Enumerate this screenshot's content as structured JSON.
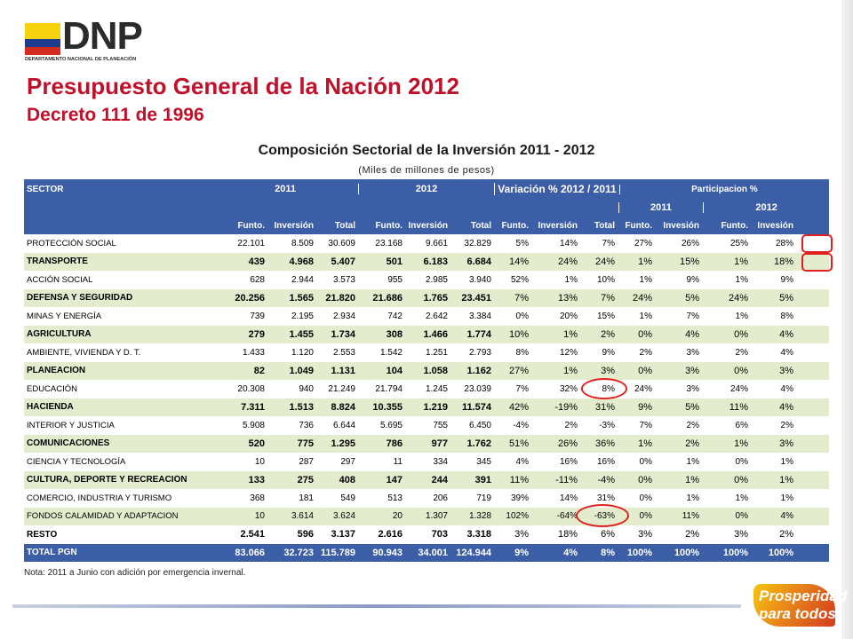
{
  "header": {
    "logo_text": "DNP",
    "logo_subtext": "DEPARTAMENTO NACIONAL DE PLANEACIÓN",
    "title": "Presupuesto General de la Nación 2012",
    "subtitle": "Decreto 111 de 1996"
  },
  "table": {
    "title": "Composición Sectorial de la Inversión 2011 - 2012",
    "subtitle": "(Miles de millones de pesos)",
    "headers": {
      "sector": "SECTOR",
      "y2011": "2011",
      "y2012": "2012",
      "variacion": "Variación % 2012 / 2011",
      "participacion": "Participacion %",
      "p2011": "2011",
      "p2012": "2012",
      "funto": "Funto.",
      "inversion": "Inversión",
      "total": "Total",
      "invesion": "Invesión"
    },
    "rows": [
      {
        "sector": "PROTECCIÓN SOCIAL",
        "bold": false,
        "v": [
          "22.101",
          "8.509",
          "30.609",
          "23.168",
          "9.661",
          "32.829",
          "5%",
          "14%",
          "7%",
          "27%",
          "26%",
          "25%",
          "28%"
        ]
      },
      {
        "sector": "TRANSPORTE",
        "bold": true,
        "v": [
          "439",
          "4.968",
          "5.407",
          "501",
          "6.183",
          "6.684",
          "14%",
          "24%",
          "24%",
          "1%",
          "15%",
          "1%",
          "18%"
        ]
      },
      {
        "sector": "ACCIÓN SOCIAL",
        "bold": false,
        "v": [
          "628",
          "2.944",
          "3.573",
          "955",
          "2.985",
          "3.940",
          "52%",
          "1%",
          "10%",
          "1%",
          "9%",
          "1%",
          "9%"
        ]
      },
      {
        "sector": "DEFENSA Y SEGURIDAD",
        "bold": true,
        "v": [
          "20.256",
          "1.565",
          "21.820",
          "21.686",
          "1.765",
          "23.451",
          "7%",
          "13%",
          "7%",
          "24%",
          "5%",
          "24%",
          "5%"
        ]
      },
      {
        "sector": "MINAS Y ENERGÍA",
        "bold": false,
        "v": [
          "739",
          "2.195",
          "2.934",
          "742",
          "2.642",
          "3.384",
          "0%",
          "20%",
          "15%",
          "1%",
          "7%",
          "1%",
          "8%"
        ]
      },
      {
        "sector": "AGRICULTURA",
        "bold": true,
        "v": [
          "279",
          "1.455",
          "1.734",
          "308",
          "1.466",
          "1.774",
          "10%",
          "1%",
          "2%",
          "0%",
          "4%",
          "0%",
          "4%"
        ]
      },
      {
        "sector": "AMBIENTE, VIVIENDA Y D. T.",
        "bold": false,
        "v": [
          "1.433",
          "1.120",
          "2.553",
          "1.542",
          "1.251",
          "2.793",
          "8%",
          "12%",
          "9%",
          "2%",
          "3%",
          "2%",
          "4%"
        ]
      },
      {
        "sector": "PLANEACIÓN",
        "bold": true,
        "v": [
          "82",
          "1.049",
          "1.131",
          "104",
          "1.058",
          "1.162",
          "27%",
          "1%",
          "3%",
          "0%",
          "3%",
          "0%",
          "3%"
        ]
      },
      {
        "sector": "EDUCACIÓN",
        "bold": false,
        "v": [
          "20.308",
          "940",
          "21.249",
          "21.794",
          "1.245",
          "23.039",
          "7%",
          "32%",
          "8%",
          "24%",
          "3%",
          "24%",
          "4%"
        ]
      },
      {
        "sector": "HACIENDA",
        "bold": true,
        "v": [
          "7.311",
          "1.513",
          "8.824",
          "10.355",
          "1.219",
          "11.574",
          "42%",
          "-19%",
          "31%",
          "9%",
          "5%",
          "11%",
          "4%"
        ]
      },
      {
        "sector": "INTERIOR Y JUSTICIA",
        "bold": false,
        "v": [
          "5.908",
          "736",
          "6.644",
          "5.695",
          "755",
          "6.450",
          "-4%",
          "2%",
          "-3%",
          "7%",
          "2%",
          "6%",
          "2%"
        ]
      },
      {
        "sector": "COMUNICACIONES",
        "bold": true,
        "v": [
          "520",
          "775",
          "1.295",
          "786",
          "977",
          "1.762",
          "51%",
          "26%",
          "36%",
          "1%",
          "2%",
          "1%",
          "3%"
        ]
      },
      {
        "sector": "CIENCIA Y TECNOLOGÍA",
        "bold": false,
        "v": [
          "10",
          "287",
          "297",
          "11",
          "334",
          "345",
          "4%",
          "16%",
          "16%",
          "0%",
          "1%",
          "0%",
          "1%"
        ]
      },
      {
        "sector": "CULTURA, DEPORTE Y RECREACIÓN",
        "bold": true,
        "v": [
          "133",
          "275",
          "408",
          "147",
          "244",
          "391",
          "11%",
          "-11%",
          "-4%",
          "0%",
          "1%",
          "0%",
          "1%"
        ]
      },
      {
        "sector": "COMERCIO, INDUSTRIA Y TURISMO",
        "bold": false,
        "v": [
          "368",
          "181",
          "549",
          "513",
          "206",
          "719",
          "39%",
          "14%",
          "31%",
          "0%",
          "1%",
          "1%",
          "1%"
        ]
      },
      {
        "sector": "FONDOS CALAMIDAD Y ADAPTACION",
        "bold": false,
        "v": [
          "10",
          "3.614",
          "3.624",
          "20",
          "1.307",
          "1.328",
          "102%",
          "-64%",
          "-63%",
          "0%",
          "11%",
          "0%",
          "4%"
        ]
      },
      {
        "sector": "RESTO",
        "bold": true,
        "v": [
          "2.541",
          "596",
          "3.137",
          "2.616",
          "703",
          "3.318",
          "3%",
          "18%",
          "6%",
          "3%",
          "2%",
          "3%",
          "2%"
        ]
      }
    ],
    "total": {
      "sector": "TOTAL PGN",
      "v": [
        "83.066",
        "32.723",
        "115.789",
        "90.943",
        "34.001",
        "124.944",
        "9%",
        "4%",
        "8%",
        "100%",
        "100%",
        "100%",
        "100%"
      ]
    }
  },
  "note": "Nota: 2011 a Junio con adición por emergencia invernal.",
  "footer_logo": {
    "line1": "Prosperidad",
    "line2": "para todos"
  }
}
